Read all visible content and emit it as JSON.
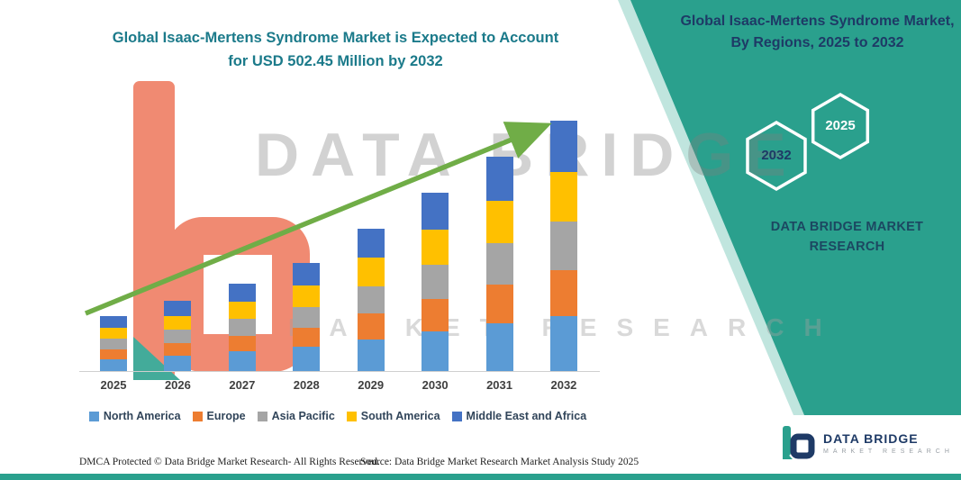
{
  "page": {
    "background": "#ffffff",
    "accent_teal": "#2AA08D"
  },
  "header": {
    "title_line1": "Global Isaac-Mertens Syndrome Market is Expected to Account",
    "title_line2": "for USD 502.45 Million by 2032",
    "title_color": "#1B7A8A"
  },
  "side_panel": {
    "title": "Global Isaac-Mertens Syndrome Market, By Regions, 2025 to 2032",
    "hexagon_back_label": "2032",
    "hexagon_front_label": "2025",
    "brand_line1": "DATA BRIDGE MARKET",
    "brand_line2": "RESEARCH"
  },
  "watermark": {
    "line1": "DATA BRIDGE",
    "line2": "MARKET RESEARCH"
  },
  "chart_data": {
    "type": "bar",
    "stacked": true,
    "title": "Global Isaac-Mertens Syndrome Market is Expected to Account for USD 502.45 Million by 2032",
    "unit": "USD Million",
    "categories": [
      "2025",
      "2026",
      "2027",
      "2028",
      "2029",
      "2030",
      "2031",
      "2032"
    ],
    "series": [
      {
        "name": "North America",
        "color": "#5B9BD5",
        "values": [
          24,
          31,
          39,
          48,
          63,
          79,
          95,
          111
        ]
      },
      {
        "name": "Europe",
        "color": "#ED7D31",
        "values": [
          20,
          25,
          32,
          39,
          52,
          65,
          78,
          91.45
        ]
      },
      {
        "name": "Asia Pacific",
        "color": "#A5A5A5",
        "values": [
          21,
          27,
          34,
          42,
          55,
          69,
          83,
          97
        ]
      },
      {
        "name": "South America",
        "color": "#FFC000",
        "values": [
          22,
          28,
          35,
          43,
          57,
          71,
          86,
          100
        ]
      },
      {
        "name": "Middle East and Africa",
        "color": "#4472C4",
        "values": [
          23,
          29,
          36,
          44,
          58,
          73,
          88,
          103
        ]
      }
    ],
    "estimated_totals": [
      110,
      140,
      176,
      216,
      285,
      357,
      430,
      502.45
    ],
    "ylim": [
      0,
      520
    ],
    "grid": false,
    "legend_position": "bottom",
    "trend_arrow": true,
    "trend_arrow_color": "#70AD47"
  },
  "footer": {
    "dmca": "DMCA Protected © Data Bridge Market Research-  All Rights Reserved.",
    "source": "Source: Data Bridge Market Research  Market Analysis Study 2025"
  },
  "footer_logo": {
    "name": "DATA BRIDGE",
    "tagline": "MARKET RESEARCH"
  }
}
